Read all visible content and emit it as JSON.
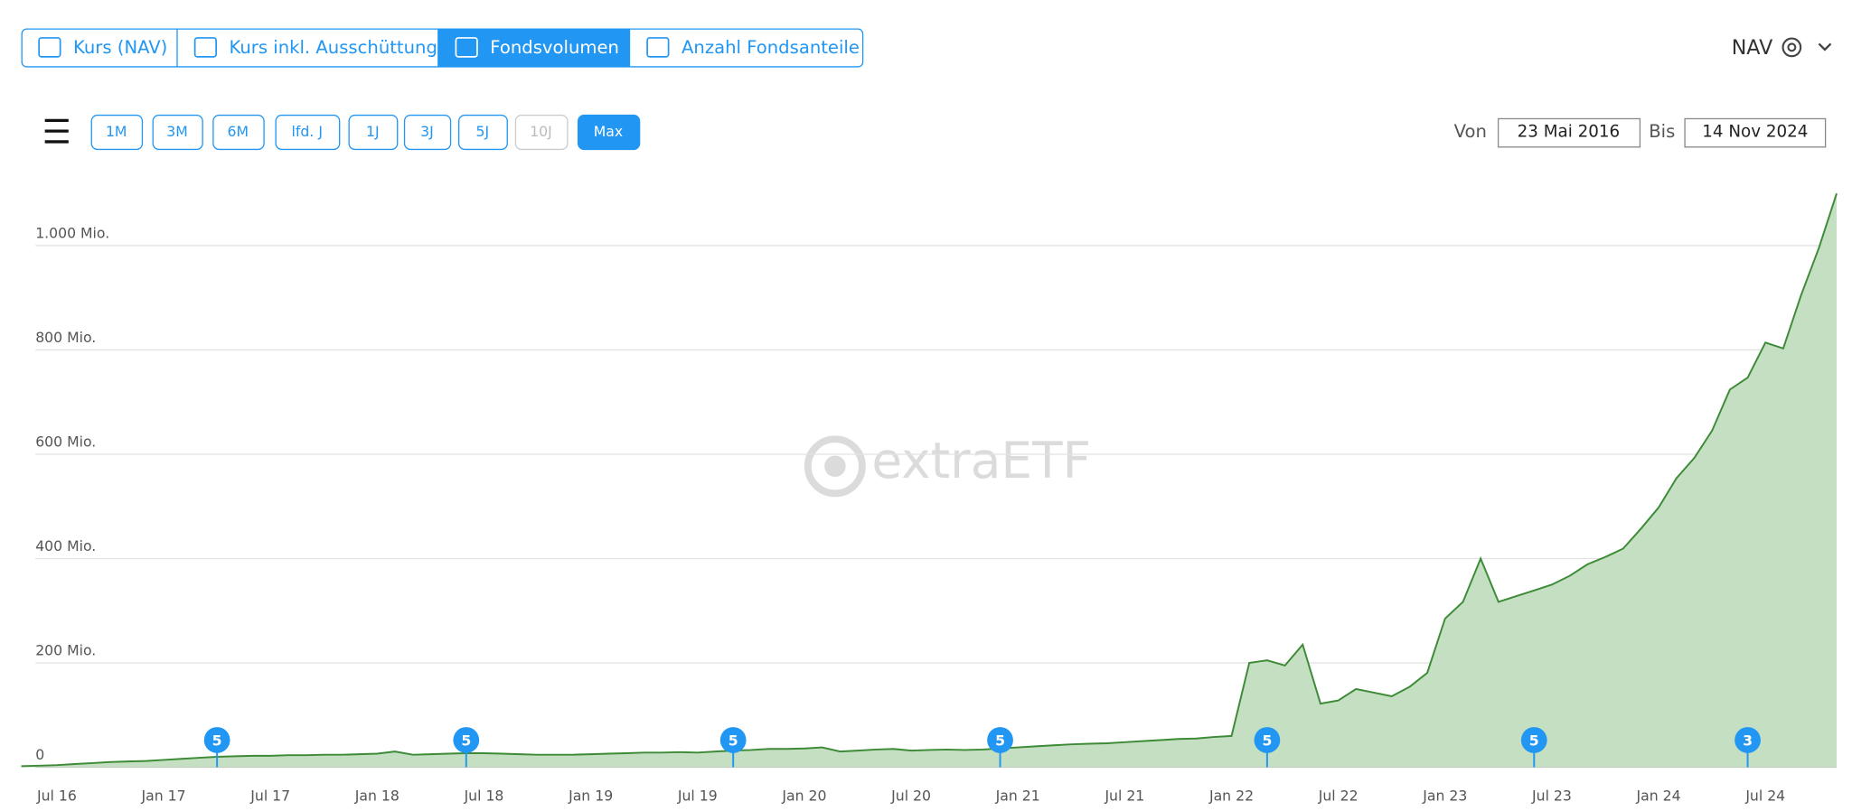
{
  "ui": {
    "tabs": [
      {
        "label": "Kurs (NAV)",
        "active": false
      },
      {
        "label": "Kurs inkl. Ausschüttung",
        "active": false
      },
      {
        "label": "Fondsvolumen",
        "active": true
      },
      {
        "label": "Anzahl Fondsanteile",
        "active": false
      }
    ],
    "price_type": "NAV",
    "ranges": [
      {
        "label": "1M",
        "state": "normal"
      },
      {
        "label": "3M",
        "state": "normal"
      },
      {
        "label": "6M",
        "state": "normal"
      },
      {
        "label": "lfd. J",
        "state": "normal"
      },
      {
        "label": "1J",
        "state": "normal"
      },
      {
        "label": "3J",
        "state": "normal"
      },
      {
        "label": "5J",
        "state": "normal"
      },
      {
        "label": "10J",
        "state": "disabled"
      },
      {
        "label": "Max",
        "state": "active"
      }
    ],
    "from_label": "Von",
    "from_date": "23 Mai 2016",
    "to_label": "Bis",
    "to_date": "14 Nov 2024",
    "watermark": "extraETF"
  },
  "chart_data": {
    "type": "area",
    "color": "#3d8b37",
    "fill": "#c4dfc2",
    "grid": true,
    "x": [
      "2016-05",
      "2016-06",
      "2016-07",
      "2016-08",
      "2016-09",
      "2016-10",
      "2016-11",
      "2016-12",
      "2017-01",
      "2017-02",
      "2017-03",
      "2017-04",
      "2017-05",
      "2017-06",
      "2017-07",
      "2017-08",
      "2017-09",
      "2017-10",
      "2017-11",
      "2017-12",
      "2018-01",
      "2018-02",
      "2018-03",
      "2018-04",
      "2018-05",
      "2018-06",
      "2018-07",
      "2018-08",
      "2018-09",
      "2018-10",
      "2018-11",
      "2018-12",
      "2019-01",
      "2019-02",
      "2019-03",
      "2019-04",
      "2019-05",
      "2019-06",
      "2019-07",
      "2019-08",
      "2019-09",
      "2019-10",
      "2019-11",
      "2019-12",
      "2020-01",
      "2020-02",
      "2020-03",
      "2020-04",
      "2020-05",
      "2020-06",
      "2020-07",
      "2020-08",
      "2020-09",
      "2020-10",
      "2020-11",
      "2020-12",
      "2021-01",
      "2021-02",
      "2021-03",
      "2021-04",
      "2021-05",
      "2021-06",
      "2021-07",
      "2021-08",
      "2021-09",
      "2021-10",
      "2021-11",
      "2021-12",
      "2022-01",
      "2022-02",
      "2022-03",
      "2022-04",
      "2022-05",
      "2022-06",
      "2022-07",
      "2022-08",
      "2022-09",
      "2022-10",
      "2022-11",
      "2022-12",
      "2023-01",
      "2023-02",
      "2023-03",
      "2023-04",
      "2023-05",
      "2023-06",
      "2023-07",
      "2023-08",
      "2023-09",
      "2023-10",
      "2023-11",
      "2023-12",
      "2024-01",
      "2024-02",
      "2024-03",
      "2024-04",
      "2024-05",
      "2024-06",
      "2024-07",
      "2024-08",
      "2024-09",
      "2024-10",
      "2024-11"
    ],
    "values": [
      2,
      3,
      4,
      6,
      8,
      10,
      11,
      12,
      14,
      16,
      18,
      20,
      21,
      22,
      22,
      23,
      23,
      24,
      24,
      25,
      26,
      30,
      24,
      25,
      26,
      27,
      27,
      26,
      25,
      24,
      24,
      24,
      25,
      26,
      27,
      28,
      28,
      29,
      28,
      30,
      32,
      33,
      35,
      35,
      36,
      38,
      30,
      32,
      34,
      35,
      32,
      33,
      34,
      33,
      34,
      36,
      38,
      40,
      42,
      44,
      45,
      46,
      48,
      50,
      52,
      54,
      55,
      58,
      60,
      200,
      205,
      195,
      235,
      122,
      128,
      150,
      143,
      136,
      154,
      181,
      285,
      317,
      400,
      317,
      328,
      339,
      350,
      367,
      389,
      403,
      419,
      457,
      498,
      554,
      593,
      645,
      724,
      747,
      814,
      803,
      905,
      995,
      1100
    ],
    "xlim": [
      "2016-05",
      "2024-11"
    ],
    "xticks": [
      {
        "value": "2016-07",
        "label": "Jul 16"
      },
      {
        "value": "2017-01",
        "label": "Jan 17"
      },
      {
        "value": "2017-07",
        "label": "Jul 17"
      },
      {
        "value": "2018-01",
        "label": "Jan 18"
      },
      {
        "value": "2018-07",
        "label": "Jul 18"
      },
      {
        "value": "2019-01",
        "label": "Jan 19"
      },
      {
        "value": "2019-07",
        "label": "Jul 19"
      },
      {
        "value": "2020-01",
        "label": "Jan 20"
      },
      {
        "value": "2020-07",
        "label": "Jul 20"
      },
      {
        "value": "2021-01",
        "label": "Jan 21"
      },
      {
        "value": "2021-07",
        "label": "Jul 21"
      },
      {
        "value": "2022-01",
        "label": "Jan 22"
      },
      {
        "value": "2022-07",
        "label": "Jul 22"
      },
      {
        "value": "2023-01",
        "label": "Jan 23"
      },
      {
        "value": "2023-07",
        "label": "Jul 23"
      },
      {
        "value": "2024-01",
        "label": "Jan 24"
      },
      {
        "value": "2024-07",
        "label": "Jul 24"
      }
    ],
    "ylim": [
      0,
      1100
    ],
    "yticks": [
      0,
      {
        "value": 200,
        "label": "200 Mio."
      },
      {
        "value": 400,
        "label": "400 Mio."
      },
      {
        "value": 600,
        "label": "600 Mio."
      },
      {
        "value": 800,
        "label": "800 Mio."
      },
      {
        "value": 1000,
        "label": "1.000 Mio."
      }
    ],
    "events": [
      {
        "x": "2017-04",
        "label": "5"
      },
      {
        "x": "2018-06",
        "label": "5"
      },
      {
        "x": "2019-09",
        "label": "5"
      },
      {
        "x": "2020-12",
        "label": "5"
      },
      {
        "x": "2022-03",
        "label": "5"
      },
      {
        "x": "2023-06",
        "label": "5"
      },
      {
        "x": "2024-06",
        "label": "3"
      }
    ]
  }
}
